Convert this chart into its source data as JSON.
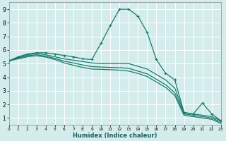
{
  "xlabel": "Humidex (Indice chaleur)",
  "bg_color": "#d4edec",
  "grid_color": "#ffffff",
  "line_color": "#1a7a6a",
  "xlim": [
    0,
    23
  ],
  "ylim": [
    0.5,
    9.5
  ],
  "xticks": [
    0,
    1,
    2,
    3,
    4,
    5,
    6,
    7,
    8,
    9,
    10,
    11,
    12,
    13,
    14,
    15,
    16,
    17,
    18,
    19,
    20,
    21,
    22,
    23
  ],
  "yticks": [
    1,
    2,
    3,
    4,
    5,
    6,
    7,
    8,
    9
  ],
  "series": [
    {
      "x": [
        0,
        1,
        2,
        3,
        4,
        5,
        6,
        7,
        8,
        9,
        10,
        11,
        12,
        13,
        14,
        15,
        16,
        17,
        18,
        19,
        20,
        21,
        22,
        23
      ],
      "y": [
        5.2,
        5.5,
        5.7,
        5.8,
        5.8,
        5.7,
        5.6,
        5.5,
        5.35,
        5.3,
        6.5,
        7.8,
        9.0,
        9.0,
        8.5,
        7.3,
        5.3,
        4.3,
        3.8,
        1.4,
        1.3,
        2.1,
        1.3,
        0.8
      ],
      "marker": true
    },
    {
      "x": [
        0,
        1,
        2,
        3,
        4,
        5,
        6,
        7,
        8,
        9,
        10,
        11,
        12,
        13,
        14,
        15,
        16,
        17,
        18,
        19,
        20,
        21,
        22,
        23
      ],
      "y": [
        5.2,
        5.45,
        5.65,
        5.75,
        5.65,
        5.5,
        5.35,
        5.25,
        5.15,
        5.05,
        5.0,
        5.0,
        5.0,
        5.0,
        4.8,
        4.6,
        4.2,
        3.8,
        3.2,
        1.4,
        1.3,
        1.2,
        1.1,
        0.8
      ],
      "marker": false
    },
    {
      "x": [
        0,
        1,
        2,
        3,
        4,
        5,
        6,
        7,
        8,
        9,
        10,
        11,
        12,
        13,
        14,
        15,
        16,
        17,
        18,
        19,
        20,
        21,
        22,
        23
      ],
      "y": [
        5.2,
        5.4,
        5.58,
        5.65,
        5.55,
        5.38,
        5.18,
        5.05,
        4.9,
        4.78,
        4.75,
        4.72,
        4.7,
        4.65,
        4.45,
        4.25,
        3.85,
        3.45,
        2.85,
        1.3,
        1.2,
        1.1,
        1.0,
        0.7
      ],
      "marker": false
    },
    {
      "x": [
        0,
        1,
        2,
        3,
        4,
        5,
        6,
        7,
        8,
        9,
        10,
        11,
        12,
        13,
        14,
        15,
        16,
        17,
        18,
        19,
        20,
        21,
        22,
        23
      ],
      "y": [
        5.2,
        5.35,
        5.5,
        5.58,
        5.48,
        5.3,
        5.05,
        4.88,
        4.72,
        4.6,
        4.58,
        4.55,
        4.52,
        4.45,
        4.28,
        4.05,
        3.65,
        3.25,
        2.65,
        1.2,
        1.1,
        1.0,
        0.9,
        0.6
      ],
      "marker": false
    }
  ]
}
